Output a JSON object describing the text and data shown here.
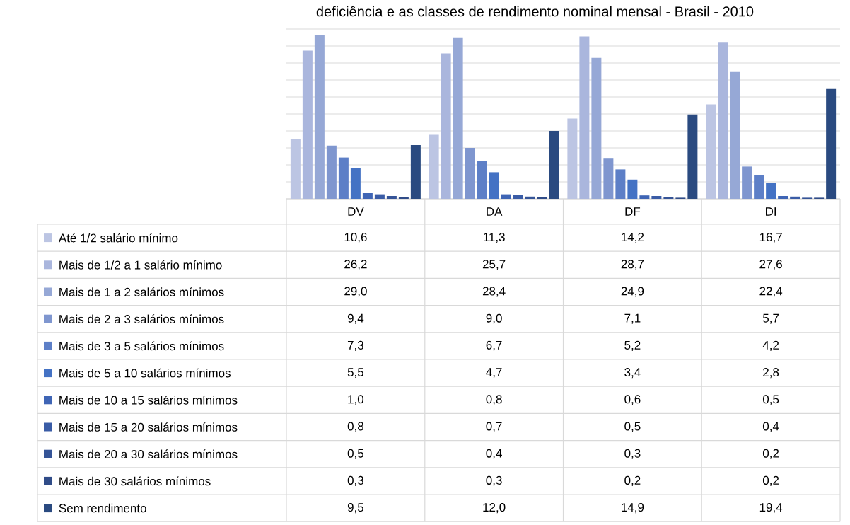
{
  "chart_data": {
    "type": "bar",
    "title": "deficiência e as classes de rendimento nominal mensal - Brasil - 2010",
    "categories": [
      "DV",
      "DA",
      "DF",
      "DI"
    ],
    "series": [
      {
        "name": "Até 1/2 salário mínimo",
        "color": "#bcc5e3",
        "values": [
          10.6,
          11.3,
          14.2,
          16.7
        ],
        "value_labels": [
          "10,6",
          "11,3",
          "14,2",
          "16,7"
        ]
      },
      {
        "name": "Mais de 1/2 a 1 salário mínimo",
        "color": "#aab6dd",
        "values": [
          26.2,
          25.7,
          28.7,
          27.6
        ],
        "value_labels": [
          "26,2",
          "25,7",
          "28,7",
          "27,6"
        ]
      },
      {
        "name": "Mais de 1 a 2 salários mínimos",
        "color": "#96a8d6",
        "values": [
          29.0,
          28.4,
          24.9,
          22.4
        ],
        "value_labels": [
          "29,0",
          "28,4",
          "24,9",
          "22,4"
        ]
      },
      {
        "name": "Mais de 2 a 3 salários mínimos",
        "color": "#7f96cf",
        "values": [
          9.4,
          9.0,
          7.1,
          5.7
        ],
        "value_labels": [
          "9,4",
          "9,0",
          "7,1",
          "5,7"
        ]
      },
      {
        "name": "Mais de 3 a 5 salários mínimos",
        "color": "#5d7fc7",
        "values": [
          7.3,
          6.7,
          5.2,
          4.2
        ],
        "value_labels": [
          "7,3",
          "6,7",
          "5,2",
          "4,2"
        ]
      },
      {
        "name": "Mais de 5 a 10 salários mínimos",
        "color": "#4472c4",
        "values": [
          5.5,
          4.7,
          3.4,
          2.8
        ],
        "value_labels": [
          "5,5",
          "4,7",
          "3,4",
          "2,8"
        ]
      },
      {
        "name": "Mais de 10 a 15 salários mínimos",
        "color": "#3f65b5",
        "values": [
          1.0,
          0.8,
          0.6,
          0.5
        ],
        "value_labels": [
          "1,0",
          "0,8",
          "0,6",
          "0,5"
        ]
      },
      {
        "name": "Mais de 15 a 20 salários mínimos",
        "color": "#3a5ca6",
        "values": [
          0.8,
          0.7,
          0.5,
          0.4
        ],
        "value_labels": [
          "0,8",
          "0,7",
          "0,5",
          "0,4"
        ]
      },
      {
        "name": "Mais de 20 a 30 salários mínimos",
        "color": "#355497",
        "values": [
          0.5,
          0.4,
          0.3,
          0.2
        ],
        "value_labels": [
          "0,5",
          "0,4",
          "0,3",
          "0,2"
        ]
      },
      {
        "name": "Mais de 30 salários mínimos",
        "color": "#304c88",
        "values": [
          0.3,
          0.3,
          0.2,
          0.2
        ],
        "value_labels": [
          "0,3",
          "0,3",
          "0,2",
          "0,2"
        ]
      },
      {
        "name": "Sem rendimento",
        "color": "#2a4a80",
        "values": [
          9.5,
          12.0,
          14.9,
          19.4
        ],
        "value_labels": [
          "9,5",
          "12,0",
          "14,9",
          "19,4"
        ]
      }
    ],
    "ylim": [
      0,
      30
    ],
    "yticks": [
      {
        "value": 0,
        "label": null
      },
      {
        "value": 3,
        "label": null
      },
      {
        "value": 6,
        "label": null
      },
      {
        "value": 9,
        "label": null
      },
      {
        "value": 12,
        "label": null
      },
      {
        "value": 15,
        "label": null
      },
      {
        "value": 18,
        "label": null
      },
      {
        "value": 21,
        "label": null
      },
      {
        "value": 24,
        "label": null
      },
      {
        "value": 27,
        "label": null
      },
      {
        "value": 30,
        "label": null
      }
    ],
    "grid": "y",
    "tick_labels": "x",
    "legend": "bottom"
  }
}
